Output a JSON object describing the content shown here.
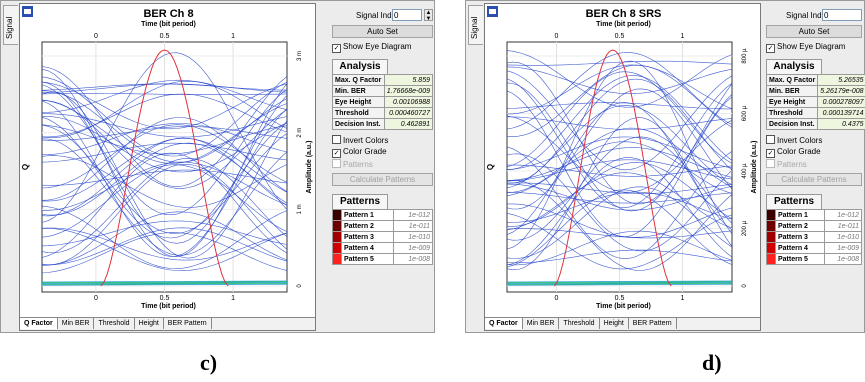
{
  "panels": [
    {
      "id": "c",
      "side_tab": "Signal",
      "title": "BER Ch 8",
      "x_axis_label": "Time (bit period)",
      "y_left_label": "Q",
      "y_right_label": "Amplitude (a.u.)",
      "x_ticks": [
        "0",
        "0.5",
        "1"
      ],
      "right_ticks": [
        "3 m",
        "2 m",
        "1 m",
        "0"
      ],
      "signal_index_label": "Signal Index",
      "signal_index_value": "0",
      "auto_set_label": "Auto Set",
      "show_eye_label": "Show Eye Diagram",
      "analysis_title": "Analysis",
      "analysis": [
        {
          "key": "Max. Q Factor",
          "value": "5.859"
        },
        {
          "key": "Min. BER",
          "value": "1.76668e-009"
        },
        {
          "key": "Eye Height",
          "value": "0.00106988"
        },
        {
          "key": "Threshold",
          "value": "0.000460727"
        },
        {
          "key": "Decision Inst.",
          "value": "0.462891"
        }
      ],
      "invert_colors_label": "Invert Colors",
      "color_grade_label": "Color Grade",
      "patterns_check_label": "Patterns",
      "calc_patterns_label": "Calculate Patterns",
      "patterns_title": "Patterns",
      "patterns": [
        {
          "name": "Pattern 1",
          "value": "1e-012",
          "color": "#3a0000"
        },
        {
          "name": "Pattern 2",
          "value": "1e-011",
          "color": "#700000"
        },
        {
          "name": "Pattern 3",
          "value": "1e-010",
          "color": "#a00000"
        },
        {
          "name": "Pattern 4",
          "value": "1e-009",
          "color": "#d00000"
        },
        {
          "name": "Pattern 5",
          "value": "1e-008",
          "color": "#ff2020"
        }
      ],
      "bottom_tabs": [
        "Q Factor",
        "Min BER",
        "Threshold",
        "Height",
        "BER Pattern"
      ],
      "caption": "c)"
    },
    {
      "id": "d",
      "side_tab": "Signal",
      "title": "BER Ch 8 SRS",
      "x_axis_label": "Time (bit period)",
      "y_left_label": "Q",
      "y_right_label": "Amplitude (a.u.)",
      "x_ticks": [
        "0",
        "0.5",
        "1"
      ],
      "right_ticks": [
        "800 µ",
        "600 µ",
        "400 µ",
        "200 µ",
        "0"
      ],
      "signal_index_label": "Signal Index",
      "signal_index_value": "0",
      "auto_set_label": "Auto Set",
      "show_eye_label": "Show Eye Diagram",
      "analysis_title": "Analysis",
      "analysis": [
        {
          "key": "Max. Q Factor",
          "value": "5.26535"
        },
        {
          "key": "Min. BER",
          "value": "5.26179e-008"
        },
        {
          "key": "Eye Height",
          "value": "0.000278097"
        },
        {
          "key": "Threshold",
          "value": "0.000139714"
        },
        {
          "key": "Decision Inst.",
          "value": "0.4375"
        }
      ],
      "invert_colors_label": "Invert Colors",
      "color_grade_label": "Color Grade",
      "patterns_check_label": "Patterns",
      "calc_patterns_label": "Calculate Patterns",
      "patterns_title": "Patterns",
      "patterns": [
        {
          "name": "Pattern 1",
          "value": "1e-012",
          "color": "#3a0000"
        },
        {
          "name": "Pattern 2",
          "value": "1e-011",
          "color": "#700000"
        },
        {
          "name": "Pattern 3",
          "value": "1e-010",
          "color": "#a00000"
        },
        {
          "name": "Pattern 4",
          "value": "1e-009",
          "color": "#d00000"
        },
        {
          "name": "Pattern 5",
          "value": "1e-008",
          "color": "#ff2020"
        }
      ],
      "bottom_tabs": [
        "Q Factor",
        "Min BER",
        "Threshold",
        "Height",
        "BER Pattern"
      ],
      "caption": "d)"
    }
  ],
  "colors": {
    "trace": "#1f3fc8",
    "q_curve": "#e0303a",
    "baseline": "#20c060"
  }
}
